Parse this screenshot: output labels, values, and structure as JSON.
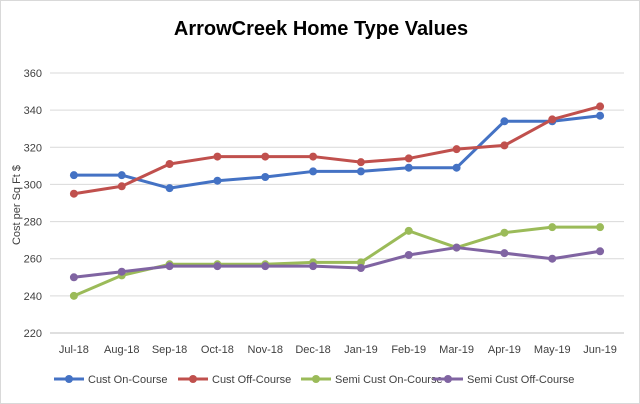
{
  "chart_data": {
    "type": "line",
    "title": "ArrowCreek Home Type Values",
    "xlabel": "",
    "ylabel": "Cost per Sq Ft $",
    "ylim": [
      220,
      360
    ],
    "yticks": [
      220,
      240,
      260,
      280,
      300,
      320,
      340,
      360
    ],
    "grid": true,
    "legend_position": "bottom",
    "categories": [
      "Jul-18",
      "Aug-18",
      "Sep-18",
      "Oct-18",
      "Nov-18",
      "Dec-18",
      "Jan-19",
      "Feb-19",
      "Mar-19",
      "Apr-19",
      "May-19",
      "Jun-19"
    ],
    "series": [
      {
        "name": "Cust On-Course",
        "color": "#4472c4",
        "values": [
          305,
          305,
          298,
          302,
          304,
          307,
          307,
          309,
          309,
          334,
          334,
          337
        ]
      },
      {
        "name": "Cust Off-Course",
        "color": "#c0504d",
        "values": [
          295,
          299,
          311,
          315,
          315,
          315,
          312,
          314,
          319,
          321,
          335,
          342
        ]
      },
      {
        "name": "Semi Cust On-Course",
        "color": "#9bbb59",
        "values": [
          240,
          251,
          257,
          257,
          257,
          258,
          258,
          275,
          266,
          274,
          277,
          277
        ]
      },
      {
        "name": "Semi Cust Off-Course",
        "color": "#8064a2",
        "values": [
          250,
          253,
          256,
          256,
          256,
          256,
          255,
          262,
          266,
          263,
          260,
          264
        ]
      }
    ]
  }
}
